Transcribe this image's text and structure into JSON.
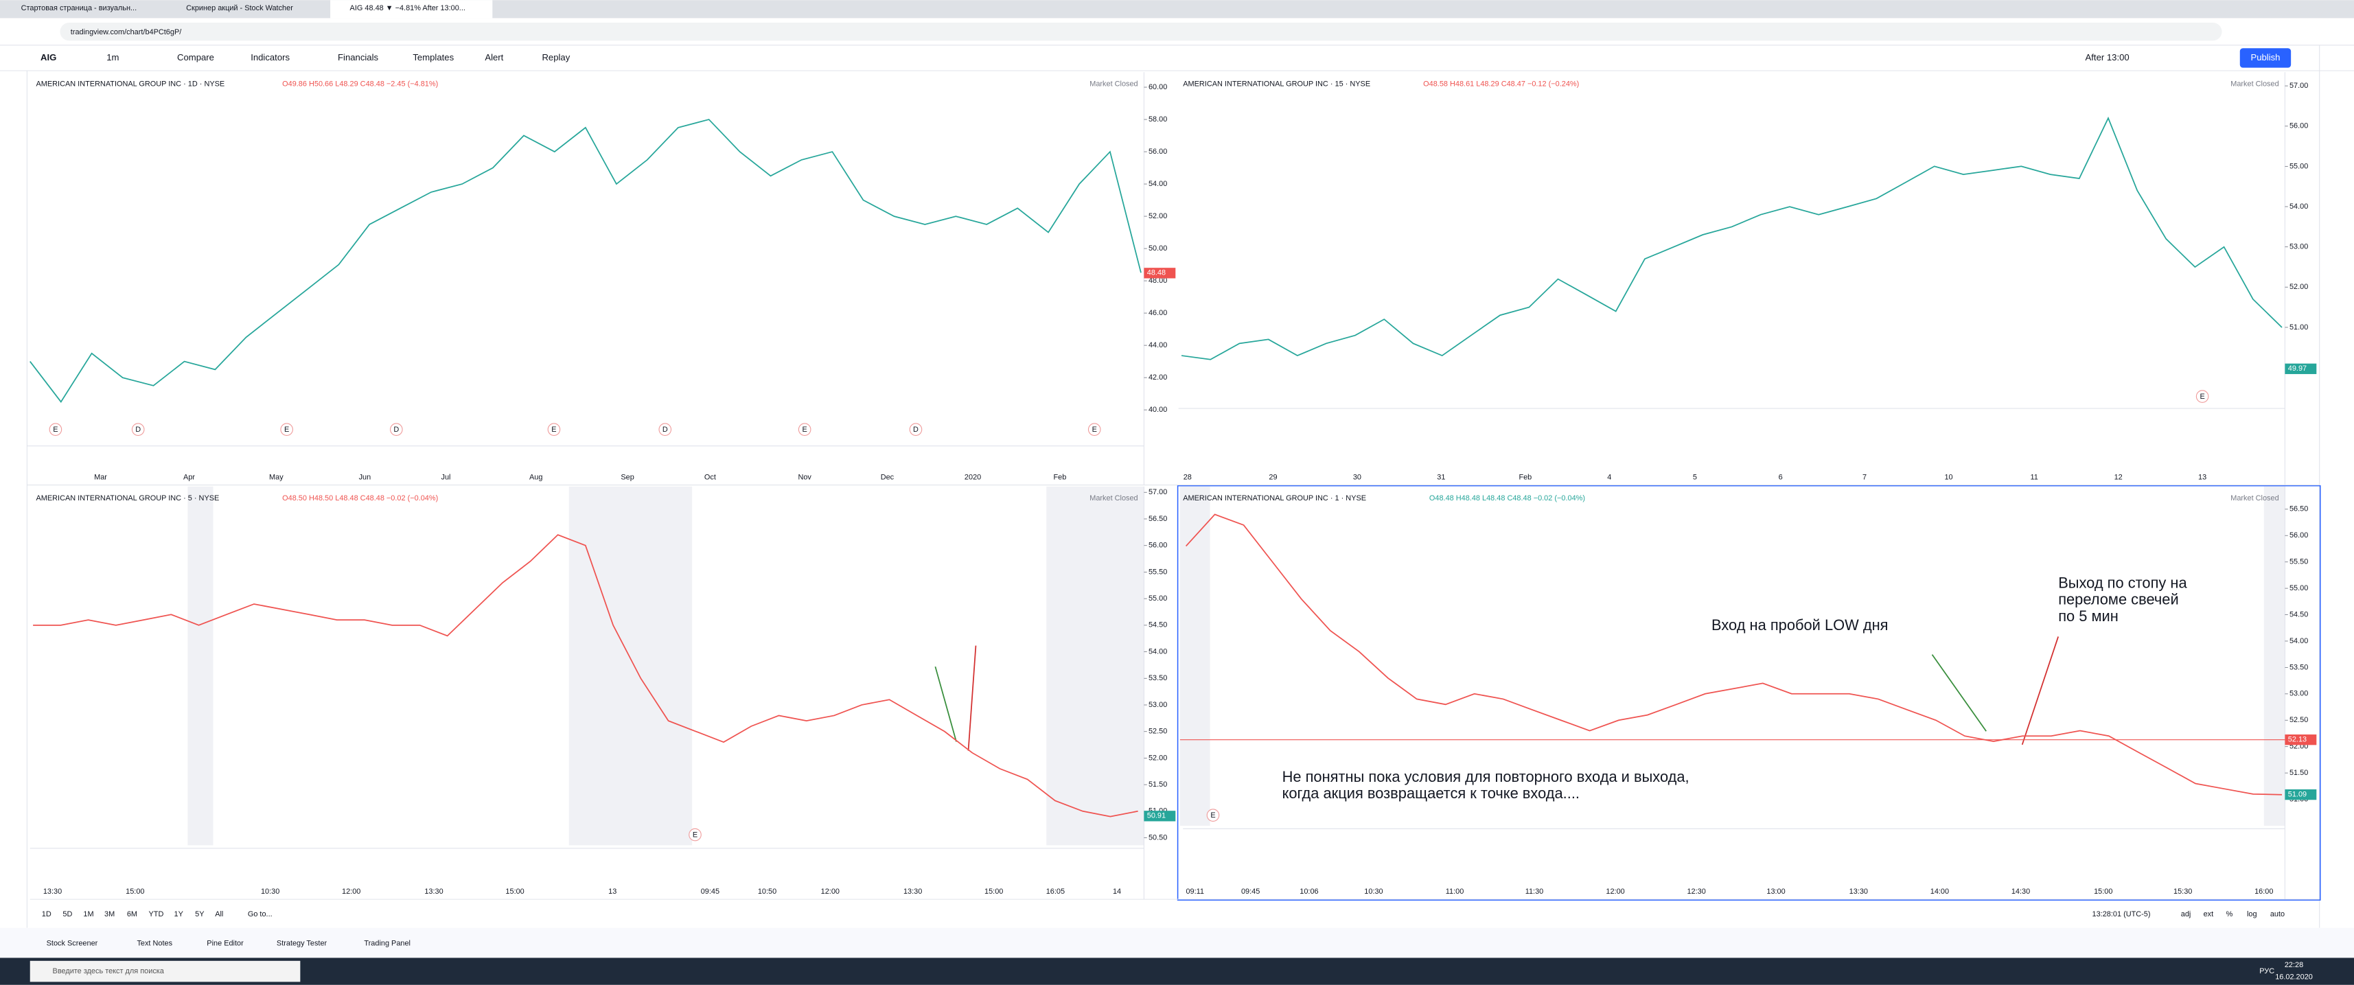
{
  "browser": {
    "tabs": [
      "Стартовая страница - визуальн...",
      "Скринер акций - Stock Watcher",
      "AIG 48.48 ▼ −4.81% After 13:00..."
    ],
    "url": "tradingview.com/chart/b4PCt6gP/"
  },
  "toolbar": {
    "symbol": "AIG",
    "interval": "1m",
    "items": [
      "Compare",
      "Indicators",
      "Financials",
      "Templates",
      "Alert",
      "Replay"
    ],
    "session": "After 13:00",
    "publish": "Publish"
  },
  "chart_data": [
    {
      "type": "line",
      "title": "AMERICAN INTERNATIONAL GROUP INC · 1D · NYSE",
      "ohlc": "O49.86 H50.66 L48.29 C48.48 −2.45 (−4.81%)",
      "status": "Market Closed",
      "color": "#26a69a",
      "values": [
        43,
        40.5,
        43.5,
        42,
        41.5,
        43,
        42.5,
        44.5,
        46,
        47.5,
        49,
        51.5,
        52.5,
        53.5,
        54,
        55,
        57,
        56,
        57.5,
        54,
        55.5,
        57.5,
        58,
        56,
        54.5,
        55.5,
        56,
        53,
        52,
        51.5,
        52,
        51.5,
        52.5,
        51,
        54,
        56,
        48.5
      ],
      "ylim": [
        37.95,
        60.93
      ],
      "yticks": [
        {
          "value": 40,
          "label": "40.00"
        },
        {
          "value": 42,
          "label": "42.00"
        },
        {
          "value": 44,
          "label": "44.00"
        },
        {
          "value": 46,
          "label": "46.00"
        },
        {
          "value": 48,
          "label": "48.00"
        },
        {
          "value": 50,
          "label": "50.00"
        },
        {
          "value": 52,
          "label": "52.00"
        },
        {
          "value": 54,
          "label": "54.00"
        },
        {
          "value": 56,
          "label": "56.00"
        },
        {
          "value": 58,
          "label": "58.00"
        },
        {
          "value": 60,
          "label": "60.00"
        }
      ],
      "xtick_labels": [
        "Mar",
        "Apr",
        "May",
        "Jun",
        "Jul",
        "Aug",
        "Sep",
        "Oct",
        "Nov",
        "Dec",
        "2020",
        "Feb"
      ],
      "events": [
        "E",
        "D",
        "E",
        "D",
        "E",
        "D",
        "E",
        "D",
        "E"
      ],
      "price_labels": [
        {
          "value": 48.48,
          "color": "#ef5350"
        }
      ]
    },
    {
      "type": "line",
      "title": "AMERICAN INTERNATIONAL GROUP INC · 15 · NYSE",
      "ohlc": "O48.58 H48.61 L48.29 C48.47 −0.12 (−0.24%)",
      "status": "Market Closed",
      "color": "#26a69a",
      "values": [
        50.3,
        50.2,
        50.6,
        50.7,
        50.3,
        50.6,
        50.8,
        51.2,
        50.6,
        50.3,
        50.8,
        51.3,
        51.5,
        52.2,
        51.8,
        51.4,
        52.7,
        53,
        53.3,
        53.5,
        53.8,
        54,
        53.8,
        54,
        54.2,
        54.6,
        55,
        54.8,
        54.9,
        55,
        54.8,
        54.7,
        56.2,
        54.4,
        53.2,
        52.5,
        53,
        51.7,
        51
      ],
      "ylim": [
        49.06,
        57.34
      ],
      "yticks": [
        {
          "value": 51,
          "label": "51.00"
        },
        {
          "value": 52,
          "label": "52.00"
        },
        {
          "value": 53,
          "label": "53.00"
        },
        {
          "value": 54,
          "label": "54.00"
        },
        {
          "value": 55,
          "label": "55.00"
        },
        {
          "value": 56,
          "label": "56.00"
        },
        {
          "value": 57,
          "label": "57.00"
        }
      ],
      "xtick_labels": [
        "28",
        "29",
        "30",
        "31",
        "Feb",
        "4",
        "5",
        "6",
        "7",
        "10",
        "11",
        "12",
        "13"
      ],
      "events": [
        "E"
      ],
      "price_labels": [
        {
          "value": 49.97,
          "color": "#26a69a"
        }
      ]
    },
    {
      "type": "line",
      "title": "AMERICAN INTERNATIONAL GROUP INC · 5 · NYSE",
      "ohlc": "O48.50 H48.50 L48.48 C48.48 −0.02 (−0.04%)",
      "status": "Market Closed",
      "color": "#ef5350",
      "values": [
        54.5,
        54.5,
        54.6,
        54.5,
        54.6,
        54.7,
        54.5,
        54.7,
        54.9,
        54.8,
        54.7,
        54.6,
        54.6,
        54.5,
        54.5,
        54.3,
        54.8,
        55.3,
        55.7,
        56.2,
        56,
        54.5,
        53.5,
        52.7,
        52.5,
        52.3,
        52.6,
        52.8,
        52.7,
        52.8,
        53,
        53.1,
        52.8,
        52.5,
        52.1,
        51.8,
        51.6,
        51.2,
        51,
        50.9,
        51
      ],
      "ylim": [
        50.36,
        57.11
      ],
      "yticks": [
        {
          "value": 50.5,
          "label": "50.50"
        },
        {
          "value": 51,
          "label": "51.00"
        },
        {
          "value": 51.5,
          "label": "51.50"
        },
        {
          "value": 52,
          "label": "52.00"
        },
        {
          "value": 52.5,
          "label": "52.50"
        },
        {
          "value": 53,
          "label": "53.00"
        },
        {
          "value": 53.5,
          "label": "53.50"
        },
        {
          "value": 54,
          "label": "54.00"
        },
        {
          "value": 54.5,
          "label": "54.50"
        },
        {
          "value": 55,
          "label": "55.00"
        },
        {
          "value": 55.5,
          "label": "55.50"
        },
        {
          "value": 56,
          "label": "56.00"
        },
        {
          "value": 56.5,
          "label": "56.50"
        },
        {
          "value": 57,
          "label": "57.00"
        }
      ],
      "xtick_labels": [
        "13:30",
        "15:00",
        "10:30",
        "12:00",
        "13:30",
        "15:00",
        "13",
        "09:45",
        "10:50",
        "12:00",
        "13:30",
        "15:00",
        "16:05",
        "14"
      ],
      "events": [
        "E"
      ],
      "price_labels": [
        {
          "value": 50.91,
          "color": "#26a69a"
        }
      ]
    },
    {
      "type": "line",
      "title": "AMERICAN INTERNATIONAL GROUP INC · 1 · NYSE",
      "ohlc": "O48.48 H48.48 L48.48 C48.48 −0.02 (−0.04%)",
      "status": "Market Closed",
      "color": "#ef5350",
      "values": [
        55.8,
        56.4,
        56.2,
        55.5,
        54.8,
        54.2,
        53.8,
        53.3,
        52.9,
        52.8,
        53,
        52.9,
        52.7,
        52.5,
        52.3,
        52.5,
        52.6,
        52.8,
        53,
        53.1,
        53.2,
        53,
        53,
        53,
        52.9,
        52.7,
        52.5,
        52.2,
        52.1,
        52.2,
        52.2,
        52.3,
        52.2,
        51.9,
        51.6,
        51.3,
        51.2,
        51.1,
        51.09
      ],
      "ylim": [
        50.5,
        56.93
      ],
      "yticks": [
        {
          "value": 51,
          "label": "51.00"
        },
        {
          "value": 51.5,
          "label": "51.50"
        },
        {
          "value": 52,
          "label": "52.00"
        },
        {
          "value": 52.5,
          "label": "52.50"
        },
        {
          "value": 53,
          "label": "53.00"
        },
        {
          "value": 53.5,
          "label": "53.50"
        },
        {
          "value": 54,
          "label": "54.00"
        },
        {
          "value": 54.5,
          "label": "54.50"
        },
        {
          "value": 55,
          "label": "55.00"
        },
        {
          "value": 55.5,
          "label": "55.50"
        },
        {
          "value": 56,
          "label": "56.00"
        },
        {
          "value": 56.5,
          "label": "56.50"
        }
      ],
      "xtick_labels": [
        "09:11",
        "09:45",
        "10:06",
        "10:30",
        "11:00",
        "11:30",
        "12:00",
        "12:30",
        "13:00",
        "13:30",
        "14:00",
        "14:30",
        "15:00",
        "15:30",
        "16:00"
      ],
      "events": [
        "E"
      ],
      "price_labels": [
        {
          "value": 52.13,
          "color": "#ef5350"
        },
        {
          "value": 51.09,
          "color": "#26a69a"
        }
      ]
    }
  ],
  "annotations": [
    "Вход на пробой LOW дня",
    "Выход по стопу на",
    "переломе свечей",
    "по 5 мин",
    "Не понятны пока условия для повторного входа и выхода,",
    "когда акция возвращается к точке входа...."
  ],
  "bottom": {
    "ranges": [
      "1D",
      "5D",
      "1M",
      "3M",
      "6M",
      "YTD",
      "1Y",
      "5Y",
      "All"
    ],
    "goto": "Go to...",
    "clock": "13:28:01 (UTC-5)",
    "options": [
      "adj",
      "ext",
      "%",
      "log",
      "auto"
    ]
  },
  "panel_tabs": [
    "Stock Screener",
    "Text Notes",
    "Pine Editor",
    "Strategy Tester",
    "Trading Panel"
  ],
  "taskbar": {
    "search": "Введите здесь текст для поиска",
    "time": "22:28",
    "lang": "РУС",
    "date": "16.02.2020"
  }
}
